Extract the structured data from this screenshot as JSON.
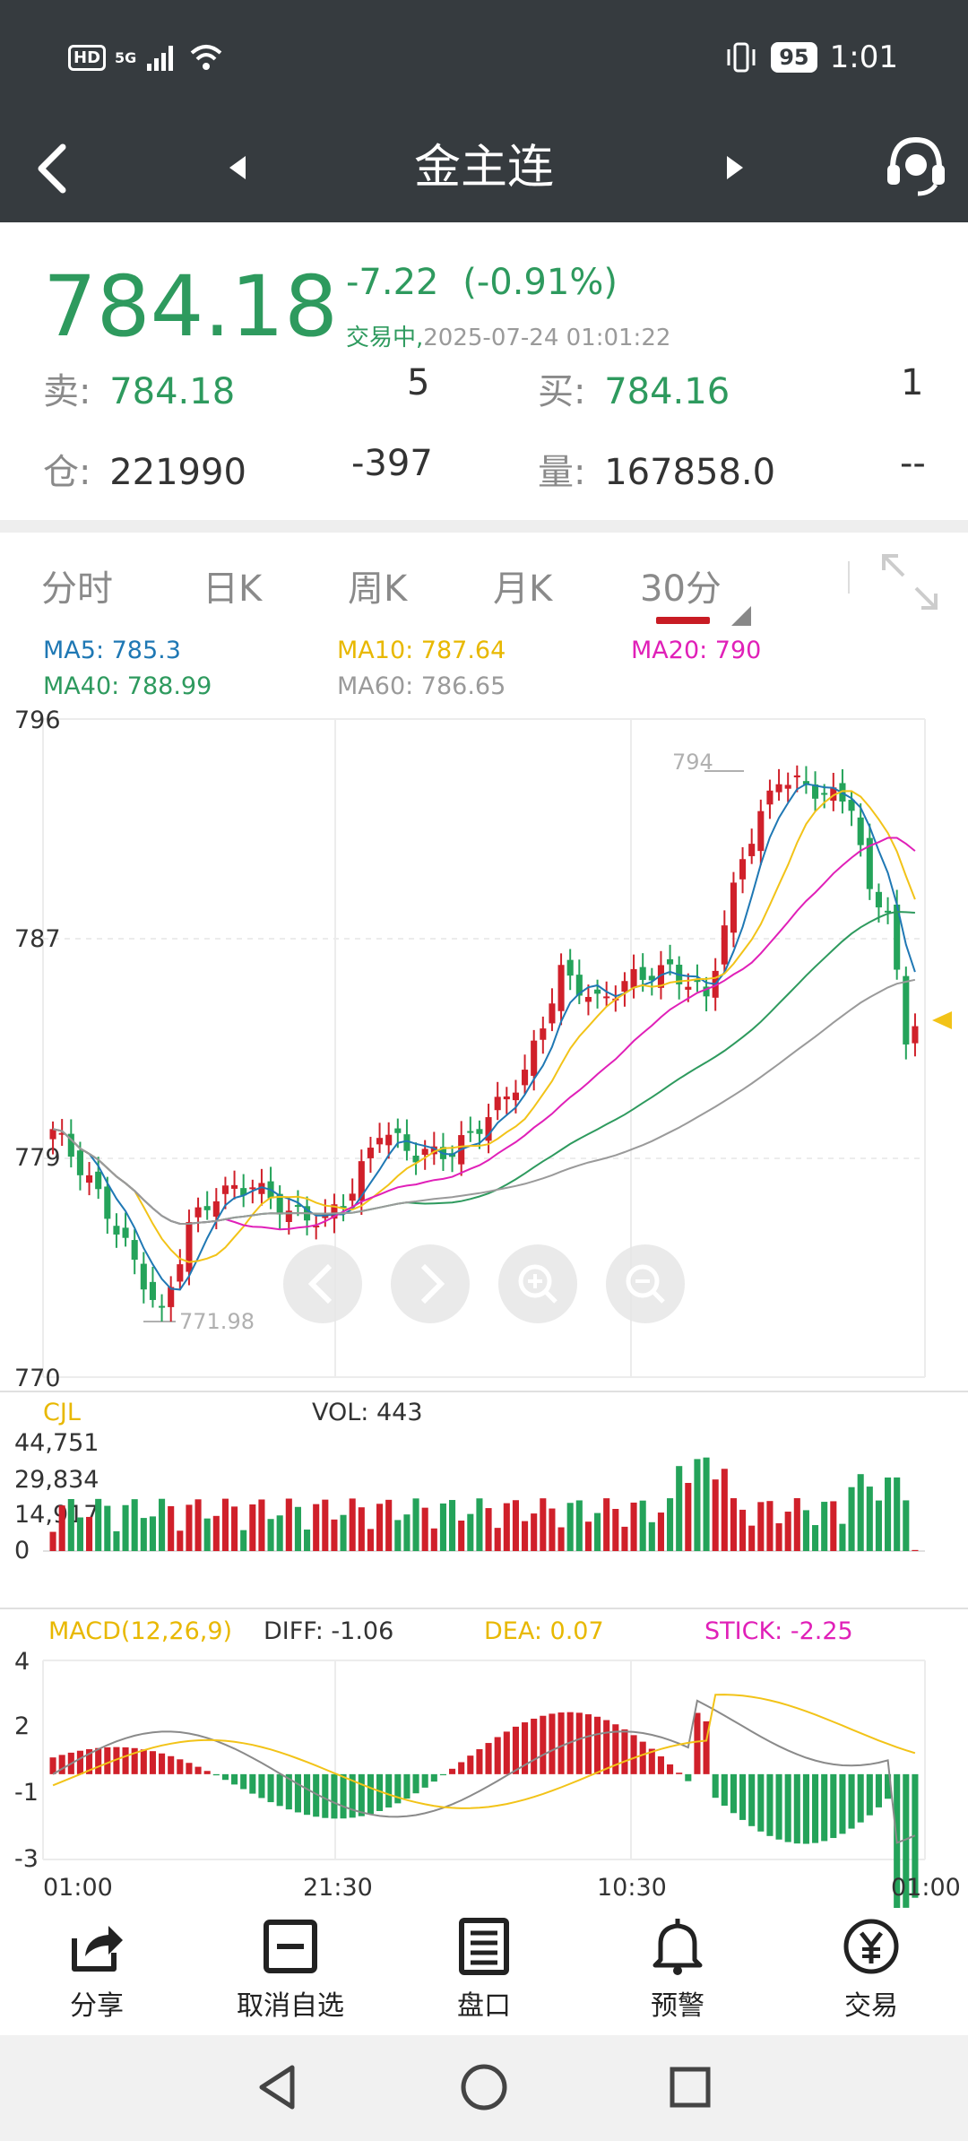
{
  "status_bar": {
    "time": "1:01",
    "battery": "95",
    "network": "5G",
    "hd": "HD"
  },
  "nav": {
    "title": "金主连"
  },
  "quote": {
    "price": "784.18",
    "change": "-7.22",
    "change_pct": "(-0.91%)",
    "trade_status": "交易中,",
    "timestamp": "2025-07-24 01:01:22",
    "ask_label": "卖:",
    "ask_price": "784.18",
    "ask_vol": "5",
    "bid_label": "买:",
    "bid_price": "784.16",
    "bid_vol": "1",
    "oi_label": "仓:",
    "oi": "221990",
    "oi_change": "-397",
    "vol_label": "量:",
    "volume": "167858.0",
    "vol_extra": "--"
  },
  "tabs": [
    {
      "label": "分时"
    },
    {
      "label": "日K"
    },
    {
      "label": "周K"
    },
    {
      "label": "月K"
    },
    {
      "label": "30分"
    }
  ],
  "ma": {
    "ma5": "MA5: 785.3",
    "ma10": "MA10: 787.64",
    "ma20": "MA20: 790",
    "ma40": "MA40: 788.99",
    "ma60": "MA60: 786.65"
  },
  "colors": {
    "up": "#d0202a",
    "down": "#24a35a",
    "ma5": "#1f78b4",
    "ma10": "#f2c318",
    "ma20": "#e020b8",
    "ma40": "#2e9a5e",
    "ma60": "#9a9a9a"
  },
  "chart_data": [
    {
      "type": "candlestick",
      "title": "",
      "y_ticks": [
        "796",
        "787",
        "779",
        "770"
      ],
      "ylim": [
        770,
        796
      ],
      "annotations": [
        "794",
        "771.98"
      ],
      "x_labels": [
        "01:00",
        "21:30",
        "10:30",
        "01:00"
      ],
      "grid": true
    },
    {
      "type": "bar",
      "title": "CJL",
      "label": "VOL: 443",
      "y_ticks": [
        "44,751",
        "29,834",
        "14,917",
        "0"
      ],
      "ylim": [
        0,
        44751
      ]
    },
    {
      "type": "bar",
      "title": "MACD(12,26,9)",
      "diff": "DIFF: -1.06",
      "dea": "DEA: 0.07",
      "stick": "STICK: -2.25",
      "y_ticks": [
        "4",
        "2",
        "-1",
        "-3"
      ],
      "ylim": [
        -3,
        4
      ]
    }
  ],
  "bottom_nav": [
    {
      "label": "分享",
      "icon": "share-icon"
    },
    {
      "label": "取消自选",
      "icon": "remove-favorite-icon"
    },
    {
      "label": "盘口",
      "icon": "orderbook-icon"
    },
    {
      "label": "预警",
      "icon": "bell-icon"
    },
    {
      "label": "交易",
      "icon": "yen-icon"
    }
  ]
}
